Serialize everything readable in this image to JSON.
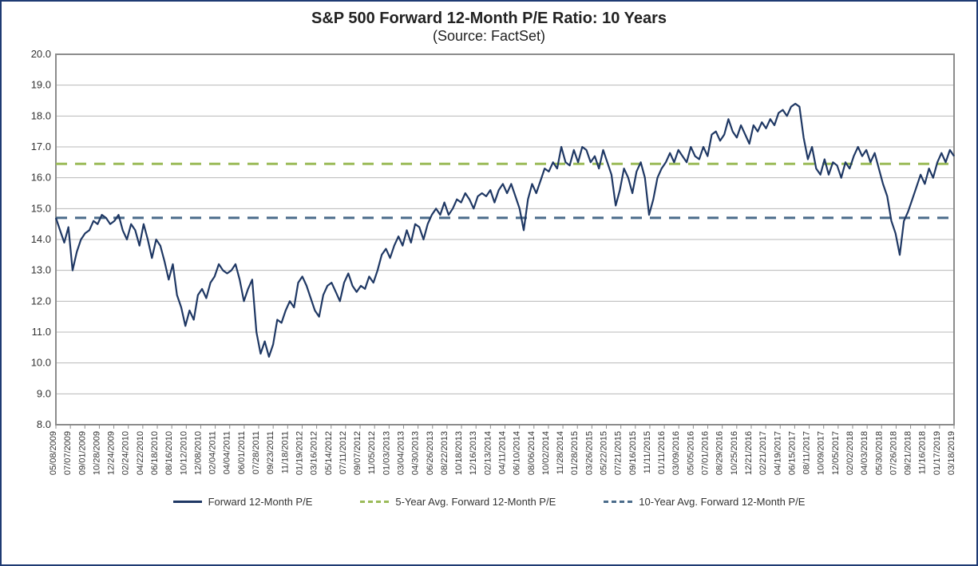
{
  "chart": {
    "type": "line",
    "title": "S&P 500 Forward 12-Month P/E Ratio: 10 Years",
    "subtitle": "(Source: FactSet)",
    "title_fontsize": 20,
    "subtitle_fontsize": 18,
    "title_color": "#222222",
    "background_color": "#ffffff",
    "frame_border_color": "#1f3b73",
    "plot_border_color": "#8c8c8c",
    "grid_color": "#b8b8b8",
    "grid_width": 1,
    "ylim": [
      8.0,
      20.0
    ],
    "ytick_step": 1.0,
    "yticks": [
      "8.0",
      "9.0",
      "10.0",
      "11.0",
      "12.0",
      "13.0",
      "14.0",
      "15.0",
      "16.0",
      "17.0",
      "18.0",
      "19.0",
      "20.0"
    ],
    "ytick_fontsize": 13,
    "xtick_fontsize": 11,
    "xtick_rotation": 90,
    "x_labels": [
      "05/08/2009",
      "07/07/2009",
      "09/01/2009",
      "10/28/2009",
      "12/24/2009",
      "02/24/2010",
      "04/22/2010",
      "06/18/2010",
      "08/16/2010",
      "10/12/2010",
      "12/08/2010",
      "02/04/2011",
      "04/04/2011",
      "06/01/2011",
      "07/28/2011",
      "09/23/2011",
      "11/18/2011",
      "01/19/2012",
      "03/16/2012",
      "05/14/2012",
      "07/11/2012",
      "09/07/2012",
      "11/05/2012",
      "01/03/2013",
      "03/04/2013",
      "04/30/2013",
      "06/26/2013",
      "08/22/2013",
      "10/18/2013",
      "12/16/2013",
      "02/13/2014",
      "04/11/2014",
      "06/10/2014",
      "08/06/2014",
      "10/02/2014",
      "11/28/2014",
      "01/28/2015",
      "03/26/2015",
      "05/22/2015",
      "07/21/2015",
      "09/16/2015",
      "11/11/2015",
      "01/11/2016",
      "03/09/2016",
      "05/05/2016",
      "07/01/2016",
      "08/29/2016",
      "10/25/2016",
      "12/21/2016",
      "02/21/2017",
      "04/19/2017",
      "06/15/2017",
      "08/11/2017",
      "10/09/2017",
      "12/05/2017",
      "02/02/2018",
      "04/03/2018",
      "05/30/2018",
      "07/26/2018",
      "09/21/2018",
      "11/16/2018",
      "01/17/2019",
      "03/18/2019"
    ],
    "series": {
      "forward_pe": {
        "label": "Forward 12-Month P/E",
        "color": "#1f3864",
        "line_width": 2.2,
        "dash": false,
        "values": [
          14.7,
          14.3,
          13.9,
          14.4,
          13.0,
          13.6,
          14.0,
          14.2,
          14.3,
          14.6,
          14.5,
          14.8,
          14.7,
          14.5,
          14.6,
          14.8,
          14.3,
          14.0,
          14.5,
          14.3,
          13.8,
          14.5,
          14.0,
          13.4,
          14.0,
          13.8,
          13.3,
          12.7,
          13.2,
          12.2,
          11.8,
          11.2,
          11.7,
          11.4,
          12.2,
          12.4,
          12.1,
          12.6,
          12.8,
          13.2,
          13.0,
          12.9,
          13.0,
          13.2,
          12.7,
          12.0,
          12.4,
          12.7,
          11.0,
          10.3,
          10.7,
          10.2,
          10.6,
          11.4,
          11.3,
          11.7,
          12.0,
          11.8,
          12.6,
          12.8,
          12.5,
          12.1,
          11.7,
          11.5,
          12.2,
          12.5,
          12.6,
          12.3,
          12.0,
          12.6,
          12.9,
          12.5,
          12.3,
          12.5,
          12.4,
          12.8,
          12.6,
          13.0,
          13.5,
          13.7,
          13.4,
          13.8,
          14.1,
          13.8,
          14.3,
          13.9,
          14.5,
          14.4,
          14.0,
          14.5,
          14.8,
          15.0,
          14.8,
          15.2,
          14.8,
          15.0,
          15.3,
          15.2,
          15.5,
          15.3,
          15.0,
          15.4,
          15.5,
          15.4,
          15.6,
          15.2,
          15.6,
          15.8,
          15.5,
          15.8,
          15.4,
          15.0,
          14.3,
          15.3,
          15.8,
          15.5,
          15.9,
          16.3,
          16.2,
          16.5,
          16.3,
          17.0,
          16.5,
          16.4,
          16.9,
          16.5,
          17.0,
          16.9,
          16.5,
          16.7,
          16.3,
          16.9,
          16.5,
          16.1,
          15.1,
          15.6,
          16.3,
          16.0,
          15.5,
          16.2,
          16.5,
          16.0,
          14.8,
          15.3,
          16.0,
          16.3,
          16.5,
          16.8,
          16.5,
          16.9,
          16.7,
          16.5,
          17.0,
          16.7,
          16.6,
          17.0,
          16.7,
          17.4,
          17.5,
          17.2,
          17.4,
          17.9,
          17.5,
          17.3,
          17.7,
          17.4,
          17.1,
          17.7,
          17.5,
          17.8,
          17.6,
          17.9,
          17.7,
          18.1,
          18.2,
          18.0,
          18.3,
          18.4,
          18.3,
          17.3,
          16.6,
          17.0,
          16.3,
          16.1,
          16.6,
          16.1,
          16.5,
          16.4,
          16.0,
          16.5,
          16.3,
          16.7,
          17.0,
          16.7,
          16.9,
          16.5,
          16.8,
          16.3,
          15.8,
          15.4,
          14.6,
          14.2,
          13.5,
          14.6,
          14.9,
          15.3,
          15.7,
          16.1,
          15.8,
          16.3,
          16.0,
          16.5,
          16.8,
          16.5,
          16.9,
          16.7
        ]
      },
      "avg5": {
        "label": "5-Year Avg. Forward 12-Month P/E",
        "color": "#9bbb59",
        "line_width": 3,
        "dash": true,
        "value": 16.45
      },
      "avg10": {
        "label": "10-Year Avg. Forward 12-Month P/E",
        "color": "#4a6b8a",
        "line_width": 3,
        "dash": true,
        "value": 14.7
      }
    },
    "legend": {
      "position": "bottom",
      "fontsize": 13,
      "items": [
        {
          "key": "forward_pe",
          "label": "Forward 12-Month P/E"
        },
        {
          "key": "avg5",
          "label": "5-Year Avg. Forward 12-Month P/E"
        },
        {
          "key": "avg10",
          "label": "10-Year Avg. Forward 12-Month P/E"
        }
      ]
    }
  }
}
